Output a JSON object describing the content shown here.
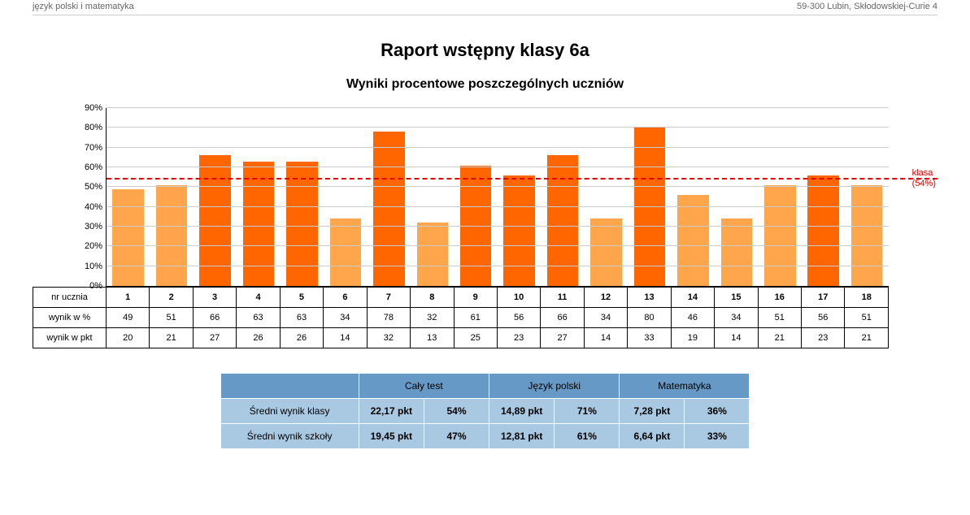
{
  "header": {
    "left": "język polski i matematyka",
    "right": "59-300 Lubin, Skłodowskiej-Curie 4"
  },
  "title": "Raport wstępny klasy 6a",
  "subtitle": "Wyniki procentowe poszczególnych uczniów",
  "chart": {
    "type": "bar",
    "ylim": [
      0,
      90
    ],
    "ytick_step": 10,
    "ytick_suffix": "%",
    "gridline_color": "#cccccc",
    "bar_width_pct": 72,
    "colors": {
      "below": "#ff6600",
      "above_or_equal": "#ffa64d"
    },
    "reference": {
      "value": 54,
      "label_line1": "klasa",
      "label_line2": "(54%)",
      "color": "#e60000"
    },
    "rows": {
      "id_label": "nr ucznia",
      "pct_label": "wynik w %",
      "pts_label": "wynik w pkt"
    },
    "students": [
      {
        "id": "1",
        "pct": 49,
        "pts": 20
      },
      {
        "id": "2",
        "pct": 51,
        "pts": 21
      },
      {
        "id": "3",
        "pct": 66,
        "pts": 27
      },
      {
        "id": "4",
        "pct": 63,
        "pts": 26
      },
      {
        "id": "5",
        "pct": 63,
        "pts": 26
      },
      {
        "id": "6",
        "pct": 34,
        "pts": 14
      },
      {
        "id": "7",
        "pct": 78,
        "pts": 32
      },
      {
        "id": "8",
        "pct": 32,
        "pts": 13
      },
      {
        "id": "9",
        "pct": 61,
        "pts": 25
      },
      {
        "id": "10",
        "pct": 56,
        "pts": 23
      },
      {
        "id": "11",
        "pct": 66,
        "pts": 27
      },
      {
        "id": "12",
        "pct": 34,
        "pts": 14
      },
      {
        "id": "13",
        "pct": 80,
        "pts": 33
      },
      {
        "id": "14",
        "pct": 46,
        "pts": 19
      },
      {
        "id": "15",
        "pct": 34,
        "pts": 14
      },
      {
        "id": "16",
        "pct": 51,
        "pts": 21
      },
      {
        "id": "17",
        "pct": 56,
        "pts": 23
      },
      {
        "id": "18",
        "pct": 51,
        "pts": 21
      }
    ]
  },
  "summary": {
    "columns": [
      "Cały test",
      "Język polski",
      "Matematyka"
    ],
    "rows": [
      {
        "label": "Średni wynik klasy",
        "cells": [
          "22,17 pkt",
          "54%",
          "14,89 pkt",
          "71%",
          "7,28 pkt",
          "36%"
        ]
      },
      {
        "label": "Średni wynik szkoły",
        "cells": [
          "19,45 pkt",
          "47%",
          "12,81 pkt",
          "61%",
          "6,64 pkt",
          "33%"
        ]
      }
    ],
    "header_bg": "#6699c5",
    "cell_bg": "#a9c8e2"
  }
}
